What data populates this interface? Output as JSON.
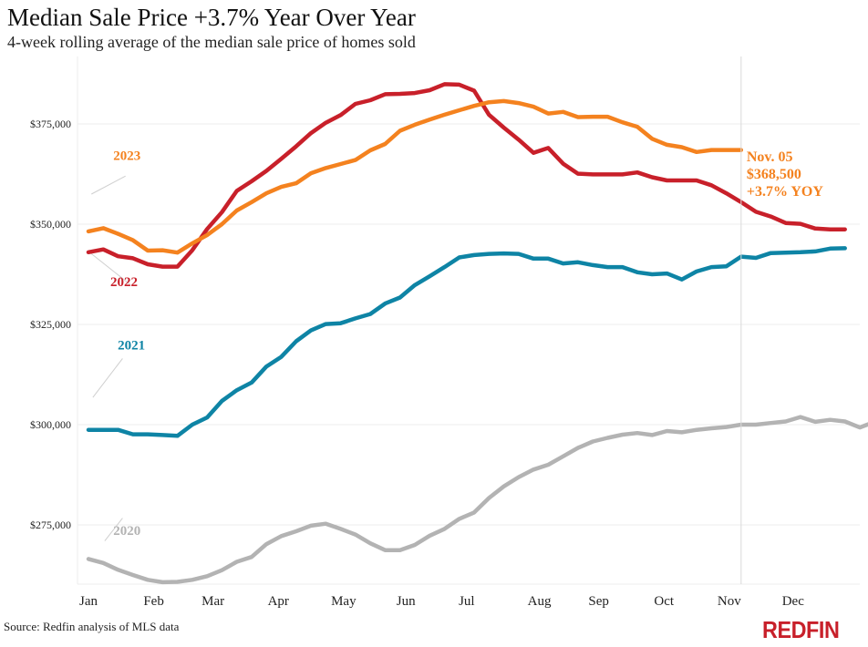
{
  "header": {
    "title": "Median Sale Price +3.7% Year Over Year",
    "subtitle": "4-week rolling average of the median sale price of homes sold"
  },
  "footer": {
    "source": "Source: Redfin analysis of MLS data",
    "logo_text": "REDFIN"
  },
  "chart_data": {
    "type": "line",
    "title": "Median Sale Price +3.7% Year Over Year",
    "subtitle": "4-week rolling average of the median sale price of homes sold",
    "xlabel": "",
    "ylabel": "",
    "x_unit": "week of year",
    "xlim": [
      1,
      53
    ],
    "ylim": [
      260000,
      390000
    ],
    "grid": true,
    "legend": "inline labels",
    "y_ticks": [
      {
        "value": 275000,
        "label": "$275,000"
      },
      {
        "value": 300000,
        "label": "$300,000"
      },
      {
        "value": 325000,
        "label": "$325,000"
      },
      {
        "value": 350000,
        "label": "$350,000"
      },
      {
        "value": 375000,
        "label": "$375,000"
      }
    ],
    "x_ticks": [
      {
        "week": 1,
        "label": "Jan"
      },
      {
        "week": 5.4,
        "label": "Feb"
      },
      {
        "week": 9.4,
        "label": "Mar"
      },
      {
        "week": 13.8,
        "label": "Apr"
      },
      {
        "week": 18.2,
        "label": "May"
      },
      {
        "week": 22.4,
        "label": "Jun"
      },
      {
        "week": 26.5,
        "label": "Jul"
      },
      {
        "week": 31.4,
        "label": "Aug"
      },
      {
        "week": 35.4,
        "label": "Sep"
      },
      {
        "week": 39.8,
        "label": "Oct"
      },
      {
        "week": 44.2,
        "label": "Nov"
      },
      {
        "week": 48.5,
        "label": "Dec"
      }
    ],
    "series": [
      {
        "name": "2020",
        "color": "#b3b3b3",
        "label_week": 3.6,
        "label_value": 272500,
        "leader": [
          [
            2.1,
            271000
          ],
          [
            3.3,
            276700
          ]
        ],
        "values": [
          266500,
          265500,
          263800,
          262500,
          261300,
          260700,
          260800,
          261300,
          262200,
          263700,
          265800,
          267000,
          270200,
          272200,
          273400,
          274800,
          275300,
          274000,
          272600,
          270400,
          268700,
          268700,
          270000,
          272300,
          274000,
          276500,
          278100,
          281700,
          284600,
          286900,
          288800,
          290000,
          292100,
          294200,
          295800,
          296700,
          297500,
          297900,
          297400,
          298400,
          298100,
          298700,
          299100,
          299400,
          300000,
          300000,
          300400,
          300800,
          301900,
          300700,
          301200,
          300800,
          299300,
          300700
        ]
      },
      {
        "name": "2021",
        "color": "#0e84a5",
        "label_week": 3.9,
        "label_value": 318700,
        "leader": [
          [
            1.3,
            306800
          ],
          [
            3.3,
            316500
          ]
        ],
        "values": [
          298700,
          298700,
          298700,
          297600,
          297600,
          297400,
          297200,
          300000,
          301800,
          305900,
          308600,
          310500,
          314500,
          316900,
          320800,
          323500,
          325100,
          325300,
          326500,
          327600,
          330200,
          331700,
          334800,
          337000,
          339300,
          341700,
          342300,
          342600,
          342700,
          342600,
          341400,
          341400,
          340200,
          340500,
          339800,
          339300,
          339300,
          338000,
          337500,
          337700,
          336200,
          338200,
          339300,
          339500,
          341900,
          341600,
          342800,
          342900,
          343000,
          343200,
          343900,
          344000
        ]
      },
      {
        "name": "2022",
        "color": "#c8202a",
        "label_week": 3.4,
        "label_value": 334600,
        "leader": [
          [
            1.0,
            343200
          ],
          [
            3.8,
            335000
          ]
        ],
        "values": [
          343000,
          343700,
          342000,
          341500,
          340000,
          339400,
          339400,
          343500,
          348800,
          353000,
          358300,
          360700,
          363300,
          366300,
          369400,
          372700,
          375300,
          377200,
          380000,
          380900,
          382400,
          382500,
          382700,
          383400,
          384900,
          384800,
          383300,
          377300,
          374100,
          371100,
          367800,
          369000,
          365100,
          362600,
          362400,
          362400,
          362400,
          362900,
          361700,
          360900,
          360900,
          360900,
          359700,
          357700,
          355500,
          353100,
          351900,
          350300,
          350100,
          348900,
          348700,
          348700
        ]
      },
      {
        "name": "2023",
        "color": "#f4821f",
        "label_week": 3.6,
        "label_value": 366000,
        "leader": [
          [
            1.2,
            357500
          ],
          [
            3.5,
            362000
          ]
        ],
        "values": [
          348200,
          349000,
          347600,
          346000,
          343400,
          343500,
          342900,
          345200,
          347300,
          350000,
          353400,
          355500,
          357700,
          359300,
          360200,
          362700,
          364000,
          365000,
          366000,
          368400,
          370000,
          373300,
          374800,
          376100,
          377300,
          378400,
          379500,
          380400,
          380700,
          380200,
          379300,
          377600,
          378000,
          376700,
          376800,
          376800,
          375400,
          374300,
          371300,
          369800,
          369200,
          368000,
          368500,
          368500,
          368500
        ],
        "annotation": {
          "date": "Nov. 05",
          "value_label": "$368,500",
          "change_label": "+3.7% YOY",
          "week": 45
        }
      }
    ]
  }
}
